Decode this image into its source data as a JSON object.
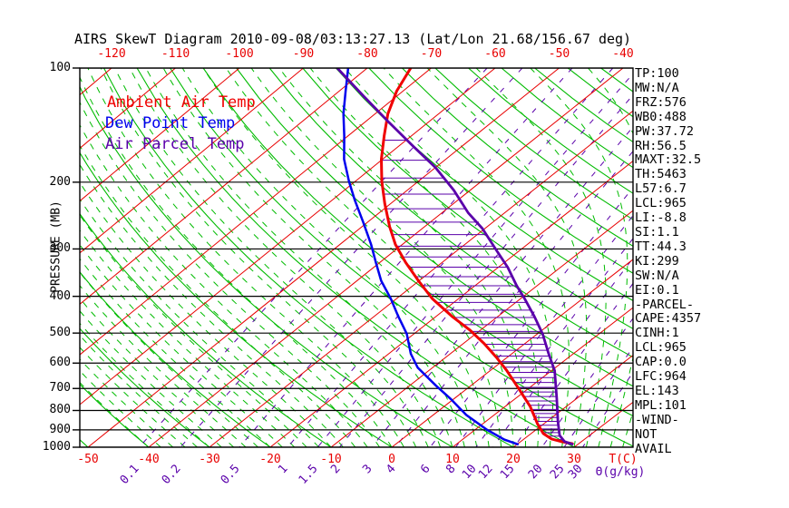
{
  "title": "AIRS SkewT Diagram 2010-09-08/03:13:27.13 (Lat/Lon 21.68/156.67 deg)",
  "legend": {
    "ambient": "Ambient Air Temp",
    "dew": "Dew Point Temp",
    "parcel": "Air Parcel Temp"
  },
  "axes": {
    "pressure_label": "PRESSURE (MB)",
    "pressure_ticks": [
      100,
      200,
      300,
      400,
      500,
      600,
      700,
      800,
      900,
      1000
    ],
    "top_temp_ticks": [
      -120,
      -110,
      -100,
      -90,
      -80,
      -70,
      -60,
      -50,
      -40
    ],
    "bottom_temp_ticks": [
      -50,
      -40,
      -30,
      -20,
      -10,
      0,
      10,
      20,
      30
    ],
    "temp_unit_label": "T(C)",
    "mixing_ratio_ticks": [
      0.1,
      0.2,
      0.5,
      1,
      1.5,
      2,
      3,
      4,
      6,
      8,
      10,
      12,
      15,
      20,
      25,
      30
    ],
    "mixing_ratio_unit_label": "Θ(g/kg)"
  },
  "colors": {
    "ambient": "#f00000",
    "dew": "#0000ee",
    "parcel": "#5a00aa",
    "isotherm": "#e80000",
    "adiabat": "#00bb00",
    "mixing": "#5a00aa",
    "isobar": "#000000"
  },
  "stats_panel": [
    "TP:100",
    "MW:N/A",
    "FRZ:576",
    "WB0:488",
    "PW:37.72",
    "RH:56.5",
    "MAXT:32.5",
    "TH:5463",
    "L57:6.7",
    "LCL:965",
    "LI:-8.8",
    "SI:1.1",
    "TT:44.3",
    "KI:299",
    "SW:N/A",
    "EI:0.1",
    "-PARCEL-",
    "CAPE:4357",
    "CINH:1",
    "LCL:965",
    "CAP:0.0",
    "LFC:964",
    "EL:143",
    "MPL:101",
    "-WIND-",
    "NOT",
    "AVAIL"
  ],
  "chart_data": {
    "type": "line",
    "variant": "skew-t-log-p",
    "title": "AIRS SkewT Diagram 2010-09-08/03:13:27.13",
    "y_axis": {
      "label": "PRESSURE (MB)",
      "scale": "log",
      "range": [
        100,
        1000
      ],
      "ticks": [
        100,
        200,
        300,
        400,
        500,
        600,
        700,
        800,
        900,
        1000
      ]
    },
    "x_axis": {
      "label": "T(C)",
      "top_ticks": [
        -120,
        -110,
        -100,
        -90,
        -80,
        -70,
        -60,
        -50,
        -40
      ],
      "bottom_ticks": [
        -50,
        -40,
        -30,
        -20,
        -10,
        0,
        10,
        20,
        30
      ]
    },
    "mixing_ratio_lines_g_per_kg": [
      0.1,
      0.2,
      0.5,
      1,
      1.5,
      2,
      3,
      4,
      6,
      8,
      10,
      12,
      15,
      20,
      25,
      30
    ],
    "cape_hatch_between": [
      "Ambient Air Temp",
      "Air Parcel Temp"
    ],
    "cape_hatch_pressure_range": [
      155,
      955
    ],
    "series": [
      {
        "name": "Ambient Air Temp",
        "color": "#f00000",
        "units": [
          "mb",
          "degC"
        ],
        "points": [
          [
            100,
            -73.2
          ],
          [
            115,
            -71.0
          ],
          [
            132,
            -68.0
          ],
          [
            151,
            -64.3
          ],
          [
            174,
            -60.2
          ],
          [
            199,
            -55.8
          ],
          [
            228,
            -50.9
          ],
          [
            262,
            -45.6
          ],
          [
            292,
            -41.1
          ],
          [
            326,
            -35.8
          ],
          [
            364,
            -30.1
          ],
          [
            406,
            -24.2
          ],
          [
            452,
            -17.4
          ],
          [
            491,
            -11.7
          ],
          [
            533,
            -6.6
          ],
          [
            578,
            -1.9
          ],
          [
            628,
            2.7
          ],
          [
            700,
            8.4
          ],
          [
            781,
            14.1
          ],
          [
            870,
            19.1
          ],
          [
            920,
            22.0
          ],
          [
            951,
            24.5
          ],
          [
            967,
            26.8
          ],
          [
            978,
            28.9
          ],
          [
            984,
            29.3
          ]
        ]
      },
      {
        "name": "Dew Point Temp",
        "color": "#0000ee",
        "units": [
          "mb",
          "degC"
        ],
        "points": [
          [
            100,
            -83.0
          ],
          [
            115,
            -79.0
          ],
          [
            132,
            -75.0
          ],
          [
            151,
            -70.6
          ],
          [
            174,
            -66.1
          ],
          [
            199,
            -61.0
          ],
          [
            223,
            -56.4
          ],
          [
            255,
            -50.7
          ],
          [
            292,
            -45.0
          ],
          [
            326,
            -40.6
          ],
          [
            364,
            -36.1
          ],
          [
            406,
            -30.9
          ],
          [
            452,
            -26.1
          ],
          [
            502,
            -21.2
          ],
          [
            567,
            -16.4
          ],
          [
            617,
            -12.4
          ],
          [
            687,
            -5.8
          ],
          [
            746,
            -0.5
          ],
          [
            822,
            5.4
          ],
          [
            900,
            12.0
          ],
          [
            955,
            16.9
          ],
          [
            984,
            20.3
          ]
        ]
      },
      {
        "name": "Air Parcel Temp",
        "color": "#5a00aa",
        "units": [
          "mb",
          "degC"
        ],
        "points": [
          [
            100,
            -84.7
          ],
          [
            118,
            -75.5
          ],
          [
            139,
            -66.2
          ],
          [
            160,
            -58.0
          ],
          [
            183,
            -50.0
          ],
          [
            210,
            -42.6
          ],
          [
            241,
            -35.8
          ],
          [
            265,
            -30.4
          ],
          [
            301,
            -24.0
          ],
          [
            336,
            -18.4
          ],
          [
            375,
            -13.3
          ],
          [
            406,
            -9.3
          ],
          [
            452,
            -4.1
          ],
          [
            503,
            0.9
          ],
          [
            567,
            6.0
          ],
          [
            628,
            10.5
          ],
          [
            743,
            16.7
          ],
          [
            857,
            21.9
          ],
          [
            931,
            25.1
          ],
          [
            966,
            27.2
          ],
          [
            984,
            29.3
          ]
        ]
      }
    ]
  }
}
